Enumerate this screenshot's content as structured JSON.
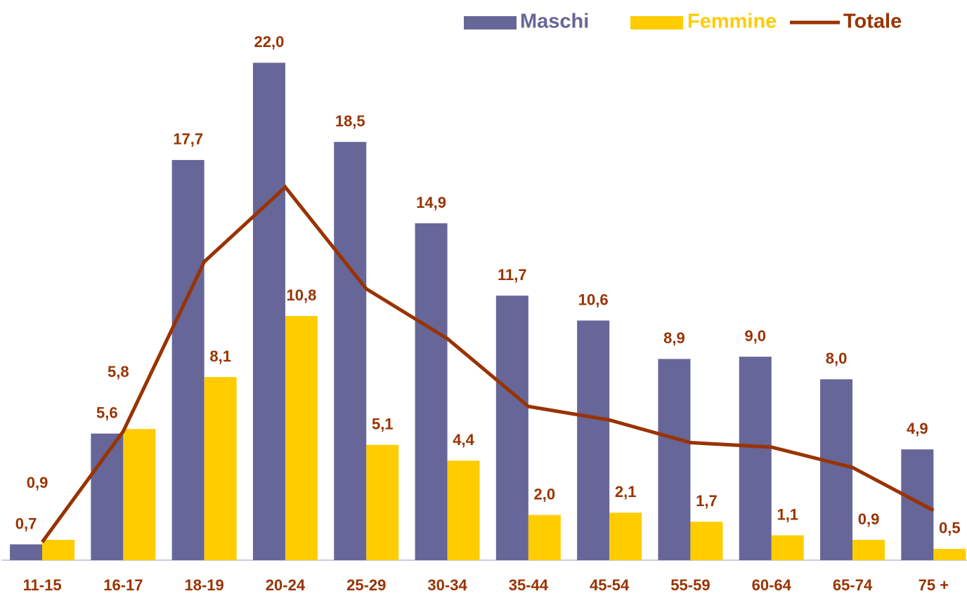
{
  "chart_data": {
    "type": "bar",
    "categories": [
      "11-15",
      "16-17",
      "18-19",
      "20-24",
      "25-29",
      "30-34",
      "35-44",
      "45-54",
      "55-59",
      "60-64",
      "65-74",
      "75 +"
    ],
    "series": [
      {
        "name": "Maschi",
        "color": "#666699",
        "type": "bar",
        "values": [
          0.7,
          5.6,
          17.7,
          22.0,
          18.5,
          14.9,
          11.7,
          10.6,
          8.9,
          9.0,
          8.0,
          4.9
        ],
        "value_labels": [
          "0,7",
          "5,6",
          "17,7",
          "22,0",
          "18,5",
          "14,9",
          "11,7",
          "10,6",
          "8,9",
          "9,0",
          "8,0",
          "4,9"
        ]
      },
      {
        "name": "Femmine",
        "color": "#ffcc00",
        "type": "bar",
        "values": [
          0.9,
          5.8,
          8.1,
          10.8,
          5.1,
          4.4,
          2.0,
          2.1,
          1.7,
          1.1,
          0.9,
          0.5
        ],
        "value_labels": [
          "0,9",
          "5,8",
          "8,1",
          "10,8",
          "5,1",
          "4,4",
          "2,0",
          "2,1",
          "1,7",
          "1,1",
          "0,9",
          "0,5"
        ]
      },
      {
        "name": "Totale",
        "color": "#993300",
        "type": "line",
        "values": [
          0.8,
          5.7,
          13.2,
          16.5,
          12.0,
          9.8,
          6.8,
          6.2,
          5.2,
          5.0,
          4.1,
          2.2
        ]
      }
    ],
    "ylim": [
      0,
      24
    ],
    "legend": "top-right",
    "label_color": "#993300"
  }
}
